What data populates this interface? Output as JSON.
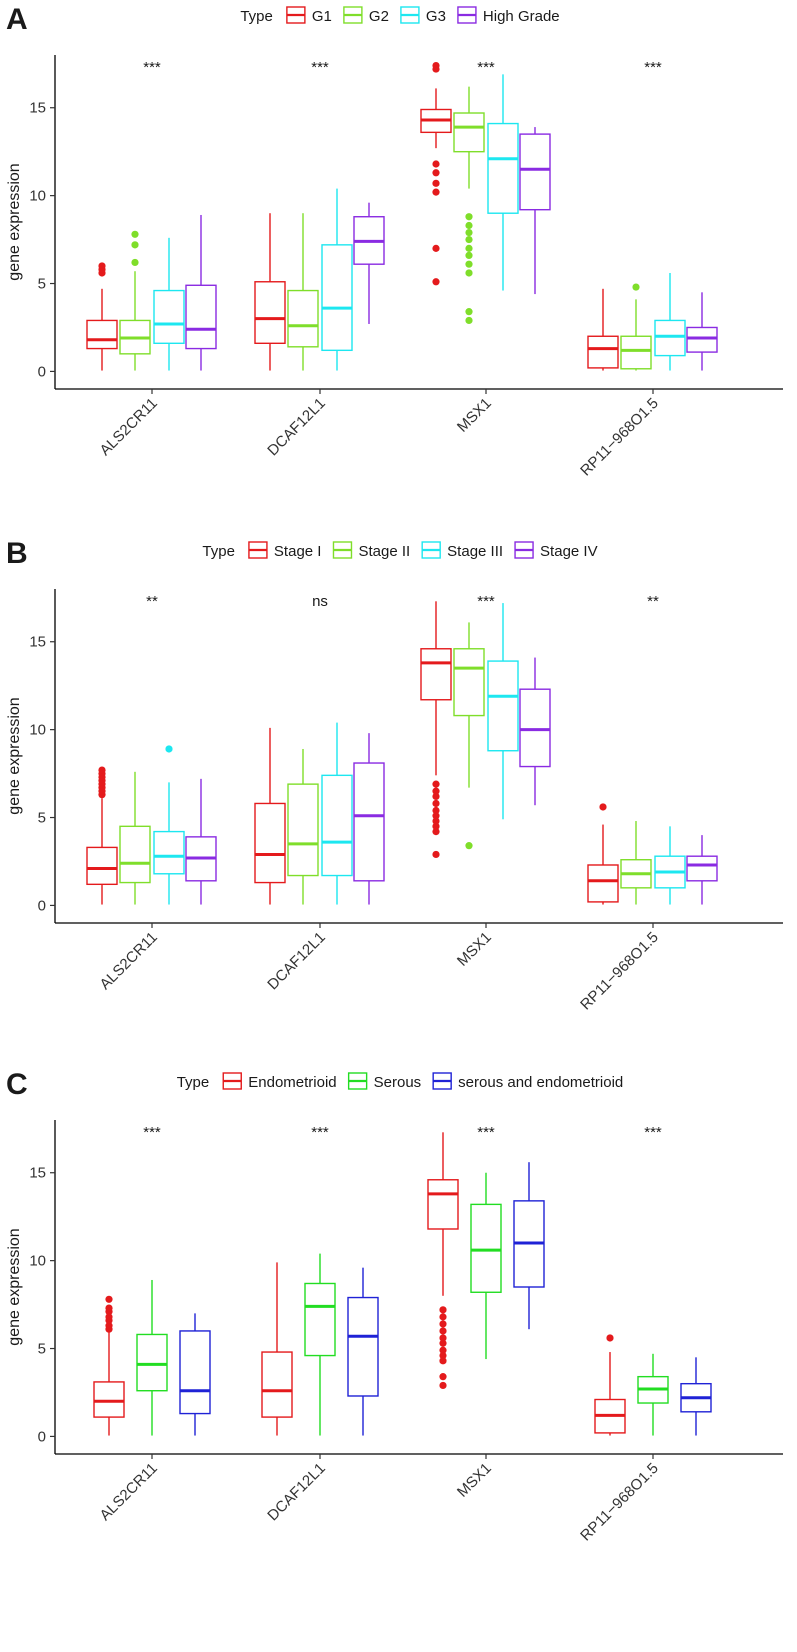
{
  "chart_data": [
    {
      "type": "boxplot",
      "panel_label": "A",
      "legend_title": "Type",
      "legend_position": "top",
      "ylabel": "gene expression",
      "xlabel": "",
      "ylim": [
        -1,
        18
      ],
      "yticks": [
        0,
        5,
        10,
        15
      ],
      "categories": [
        "ALS2CR11",
        "DCAF12L1",
        "MSX1",
        "RP11−968O1.5"
      ],
      "significance": [
        "***",
        "***",
        "***",
        "***"
      ],
      "series": [
        {
          "name": "G1",
          "color": "#e41a1c",
          "boxes": [
            {
              "min": 0.05,
              "q1": 1.3,
              "median": 1.8,
              "q3": 2.9,
              "max": 4.7,
              "outliers": [
                5.6,
                5.8,
                6.0
              ]
            },
            {
              "min": 0.05,
              "q1": 1.6,
              "median": 3.0,
              "q3": 5.1,
              "max": 9.0,
              "outliers": []
            },
            {
              "min": 12.7,
              "q1": 13.6,
              "median": 14.3,
              "q3": 14.9,
              "max": 16.1,
              "outliers": [
                5.1,
                7.0,
                10.2,
                10.7,
                11.3,
                11.8,
                17.2,
                17.4
              ]
            },
            {
              "min": 0.05,
              "q1": 0.2,
              "median": 1.3,
              "q3": 2.0,
              "max": 4.7,
              "outliers": []
            }
          ]
        },
        {
          "name": "G2",
          "color": "#7fde2a",
          "boxes": [
            {
              "min": 0.05,
              "q1": 1.0,
              "median": 1.9,
              "q3": 2.9,
              "max": 5.7,
              "outliers": [
                6.2,
                7.2,
                7.8
              ]
            },
            {
              "min": 0.05,
              "q1": 1.4,
              "median": 2.6,
              "q3": 4.6,
              "max": 9.0,
              "outliers": []
            },
            {
              "min": 10.4,
              "q1": 12.5,
              "median": 13.9,
              "q3": 14.7,
              "max": 16.2,
              "outliers": [
                2.9,
                3.4,
                5.6,
                6.1,
                6.6,
                7.0,
                7.5,
                7.9,
                8.3,
                8.8
              ]
            },
            {
              "min": 0.05,
              "q1": 0.15,
              "median": 1.2,
              "q3": 2.0,
              "max": 4.1,
              "outliers": [
                4.8
              ]
            }
          ]
        },
        {
          "name": "G3",
          "color": "#1de7f0",
          "boxes": [
            {
              "min": 0.05,
              "q1": 1.6,
              "median": 2.7,
              "q3": 4.6,
              "max": 7.6,
              "outliers": []
            },
            {
              "min": 0.05,
              "q1": 1.2,
              "median": 3.6,
              "q3": 7.2,
              "max": 10.4,
              "outliers": []
            },
            {
              "min": 4.6,
              "q1": 9.0,
              "median": 12.1,
              "q3": 14.1,
              "max": 16.9,
              "outliers": []
            },
            {
              "min": 0.05,
              "q1": 0.9,
              "median": 2.0,
              "q3": 2.9,
              "max": 5.6,
              "outliers": []
            }
          ]
        },
        {
          "name": "High Grade",
          "color": "#8a2be2",
          "boxes": [
            {
              "min": 0.05,
              "q1": 1.3,
              "median": 2.4,
              "q3": 4.9,
              "max": 8.9,
              "outliers": []
            },
            {
              "min": 2.7,
              "q1": 6.1,
              "median": 7.4,
              "q3": 8.8,
              "max": 9.6,
              "outliers": []
            },
            {
              "min": 4.4,
              "q1": 9.2,
              "median": 11.5,
              "q3": 13.5,
              "max": 13.9,
              "outliers": []
            },
            {
              "min": 0.05,
              "q1": 1.1,
              "median": 1.9,
              "q3": 2.5,
              "max": 4.5,
              "outliers": []
            }
          ]
        }
      ]
    },
    {
      "type": "boxplot",
      "panel_label": "B",
      "legend_title": "Type",
      "legend_position": "top",
      "ylabel": "gene expression",
      "xlabel": "",
      "ylim": [
        -1,
        18
      ],
      "yticks": [
        0,
        5,
        10,
        15
      ],
      "categories": [
        "ALS2CR11",
        "DCAF12L1",
        "MSX1",
        "RP11−968O1.5"
      ],
      "significance": [
        "**",
        "ns",
        "***",
        "**"
      ],
      "series": [
        {
          "name": "Stage I",
          "color": "#e41a1c",
          "boxes": [
            {
              "min": 0.05,
              "q1": 1.2,
              "median": 2.1,
              "q3": 3.3,
              "max": 6.1,
              "outliers": [
                6.3,
                6.5,
                6.7,
                6.9,
                7.1,
                7.3,
                7.5,
                7.7
              ]
            },
            {
              "min": 0.05,
              "q1": 1.3,
              "median": 2.9,
              "q3": 5.8,
              "max": 10.1,
              "outliers": []
            },
            {
              "min": 7.4,
              "q1": 11.7,
              "median": 13.8,
              "q3": 14.6,
              "max": 17.3,
              "outliers": [
                2.9,
                4.2,
                4.5,
                4.8,
                5.1,
                5.4,
                5.8,
                6.2,
                6.5,
                6.9
              ]
            },
            {
              "min": 0.05,
              "q1": 0.2,
              "median": 1.4,
              "q3": 2.3,
              "max": 4.6,
              "outliers": [
                5.6
              ]
            }
          ]
        },
        {
          "name": "Stage II",
          "color": "#7fde2a",
          "boxes": [
            {
              "min": 0.05,
              "q1": 1.3,
              "median": 2.4,
              "q3": 4.5,
              "max": 7.6,
              "outliers": []
            },
            {
              "min": 0.05,
              "q1": 1.7,
              "median": 3.5,
              "q3": 6.9,
              "max": 8.9,
              "outliers": []
            },
            {
              "min": 6.7,
              "q1": 10.8,
              "median": 13.5,
              "q3": 14.6,
              "max": 16.1,
              "outliers": [
                3.4
              ]
            },
            {
              "min": 0.05,
              "q1": 1.0,
              "median": 1.8,
              "q3": 2.6,
              "max": 4.8,
              "outliers": []
            }
          ]
        },
        {
          "name": "Stage III",
          "color": "#1de7f0",
          "boxes": [
            {
              "min": 0.05,
              "q1": 1.8,
              "median": 2.8,
              "q3": 4.2,
              "max": 7.0,
              "outliers": [
                8.9
              ]
            },
            {
              "min": 0.05,
              "q1": 1.7,
              "median": 3.6,
              "q3": 7.4,
              "max": 10.4,
              "outliers": []
            },
            {
              "min": 4.9,
              "q1": 8.8,
              "median": 11.9,
              "q3": 13.9,
              "max": 17.2,
              "outliers": []
            },
            {
              "min": 0.05,
              "q1": 1.0,
              "median": 1.9,
              "q3": 2.8,
              "max": 4.5,
              "outliers": []
            }
          ]
        },
        {
          "name": "Stage IV",
          "color": "#8a2be2",
          "boxes": [
            {
              "min": 0.05,
              "q1": 1.4,
              "median": 2.7,
              "q3": 3.9,
              "max": 7.2,
              "outliers": []
            },
            {
              "min": 0.05,
              "q1": 1.4,
              "median": 5.1,
              "q3": 8.1,
              "max": 9.8,
              "outliers": []
            },
            {
              "min": 5.7,
              "q1": 7.9,
              "median": 10.0,
              "q3": 12.3,
              "max": 14.1,
              "outliers": []
            },
            {
              "min": 0.05,
              "q1": 1.4,
              "median": 2.3,
              "q3": 2.8,
              "max": 4.0,
              "outliers": []
            }
          ]
        }
      ]
    },
    {
      "type": "boxplot",
      "panel_label": "C",
      "legend_title": "Type",
      "legend_position": "top",
      "ylabel": "gene expression",
      "xlabel": "",
      "ylim": [
        -1,
        18
      ],
      "yticks": [
        0,
        5,
        10,
        15
      ],
      "categories": [
        "ALS2CR11",
        "DCAF12L1",
        "MSX1",
        "RP11−968O1.5"
      ],
      "significance": [
        "***",
        "***",
        "***",
        "***"
      ],
      "series": [
        {
          "name": "Endometrioid",
          "color": "#e41a1c",
          "boxes": [
            {
              "min": 0.05,
              "q1": 1.1,
              "median": 2.0,
              "q3": 3.1,
              "max": 6.0,
              "outliers": [
                6.1,
                6.3,
                6.6,
                6.8,
                7.1,
                7.3,
                7.8
              ]
            },
            {
              "min": 0.05,
              "q1": 1.1,
              "median": 2.6,
              "q3": 4.8,
              "max": 9.9,
              "outliers": []
            },
            {
              "min": 8.0,
              "q1": 11.8,
              "median": 13.8,
              "q3": 14.6,
              "max": 17.3,
              "outliers": [
                2.9,
                3.4,
                4.3,
                4.6,
                4.9,
                5.3,
                5.6,
                6.0,
                6.4,
                6.8,
                7.2
              ]
            },
            {
              "min": 0.05,
              "q1": 0.2,
              "median": 1.2,
              "q3": 2.1,
              "max": 4.8,
              "outliers": [
                5.6
              ]
            }
          ]
        },
        {
          "name": "Serous",
          "color": "#22dd22",
          "boxes": [
            {
              "min": 0.05,
              "q1": 2.6,
              "median": 4.1,
              "q3": 5.8,
              "max": 8.9,
              "outliers": []
            },
            {
              "min": 0.05,
              "q1": 4.6,
              "median": 7.4,
              "q3": 8.7,
              "max": 10.4,
              "outliers": []
            },
            {
              "min": 4.4,
              "q1": 8.2,
              "median": 10.6,
              "q3": 13.2,
              "max": 15.0,
              "outliers": []
            },
            {
              "min": 0.05,
              "q1": 1.9,
              "median": 2.7,
              "q3": 3.4,
              "max": 4.7,
              "outliers": []
            }
          ]
        },
        {
          "name": "serous and endometrioid",
          "color": "#1f22d6",
          "boxes": [
            {
              "min": 0.05,
              "q1": 1.3,
              "median": 2.6,
              "q3": 6.0,
              "max": 7.0,
              "outliers": []
            },
            {
              "min": 0.05,
              "q1": 2.3,
              "median": 5.7,
              "q3": 7.9,
              "max": 9.6,
              "outliers": []
            },
            {
              "min": 6.1,
              "q1": 8.5,
              "median": 11.0,
              "q3": 13.4,
              "max": 15.6,
              "outliers": []
            },
            {
              "min": 0.05,
              "q1": 1.4,
              "median": 2.2,
              "q3": 3.0,
              "max": 4.5,
              "outliers": []
            }
          ]
        }
      ]
    }
  ]
}
